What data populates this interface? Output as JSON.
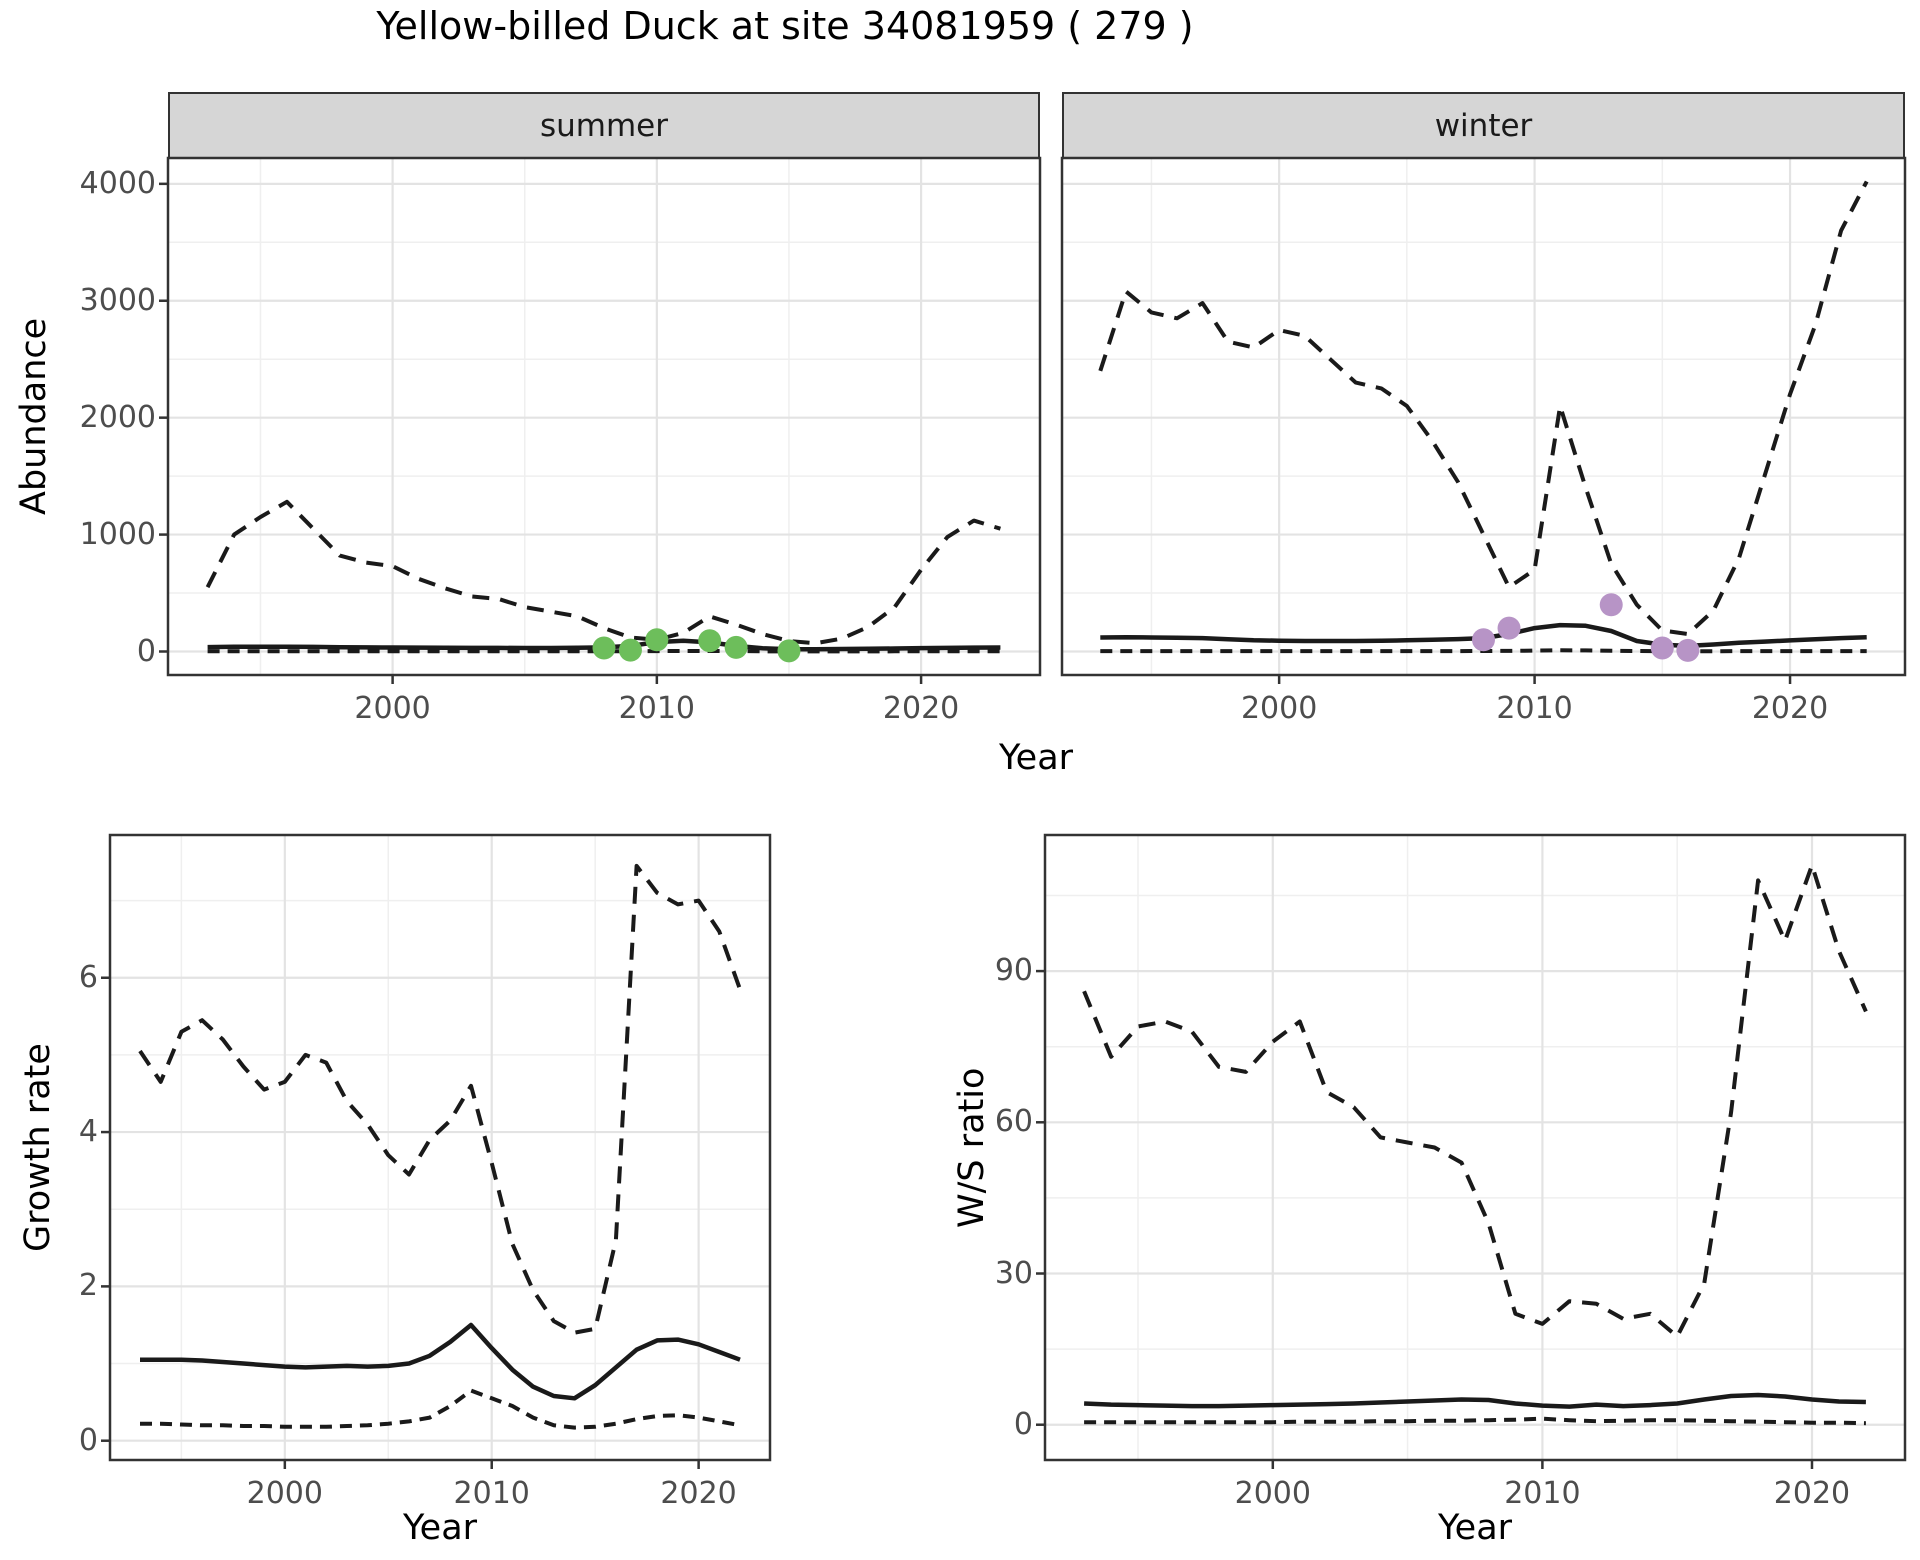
{
  "title": "Yellow-billed Duck at site 34081959 ( 279 )",
  "colors": {
    "summer_points": "#6DBE5B",
    "winter_points": "#B794C6",
    "line": "#1A1A1A",
    "strip_bg": "#D6D6D6",
    "grid_major": "#E3E3E3",
    "grid_minor": "#EFEFEF",
    "tick_text": "#4D4D4D"
  },
  "chart_data": [
    {
      "id": "abundance-summer",
      "type": "line",
      "facet_label": "summer",
      "xlabel": "Year",
      "ylabel": "Abundance",
      "xlim": [
        1991.5,
        2024.5
      ],
      "ylim": [
        -201,
        4221
      ],
      "x_ticks": [
        2000,
        2010,
        2020
      ],
      "y_ticks": [
        0,
        1000,
        2000,
        3000,
        4000
      ],
      "grid": true,
      "legend": "none",
      "x": [
        1993,
        1994,
        1995,
        1996,
        1997,
        1998,
        1999,
        2000,
        2001,
        2002,
        2003,
        2004,
        2005,
        2006,
        2007,
        2008,
        2009,
        2010,
        2011,
        2012,
        2013,
        2014,
        2015,
        2016,
        2017,
        2018,
        2019,
        2020,
        2021,
        2022,
        2023
      ],
      "series": [
        {
          "name": "upper 95% CI",
          "style": "dashed",
          "values": [
            550,
            1000,
            1150,
            1280,
            1050,
            820,
            760,
            730,
            620,
            540,
            470,
            450,
            380,
            340,
            300,
            200,
            120,
            100,
            160,
            300,
            230,
            150,
            90,
            70,
            110,
            210,
            380,
            700,
            980,
            1120,
            1050
          ]
        },
        {
          "name": "median",
          "style": "solid",
          "values": [
            38,
            40,
            41,
            41,
            39,
            37,
            35,
            34,
            33,
            32,
            31,
            31,
            30,
            30,
            32,
            35,
            48,
            80,
            92,
            78,
            48,
            28,
            20,
            19,
            21,
            23,
            26,
            29,
            31,
            33,
            34
          ]
        },
        {
          "name": "lower 95% CI",
          "style": "dashed",
          "values": [
            2,
            2,
            2,
            2,
            2,
            2,
            2,
            2,
            2,
            2,
            2,
            2,
            2,
            2,
            2,
            2,
            2,
            3,
            4,
            4,
            3,
            2,
            1,
            1,
            1,
            1,
            2,
            2,
            2,
            2,
            2
          ]
        }
      ],
      "points": {
        "name": "observed summer counts",
        "color": "#6DBE5B",
        "data": [
          [
            2008,
            30
          ],
          [
            2009,
            12
          ],
          [
            2010,
            100
          ],
          [
            2012,
            92
          ],
          [
            2013,
            35
          ],
          [
            2015,
            5
          ]
        ]
      }
    },
    {
      "id": "abundance-winter",
      "type": "line",
      "facet_label": "winter",
      "xlabel": "Year",
      "ylabel": "Abundance",
      "xlim": [
        1991.5,
        2024.5
      ],
      "ylim": [
        -201,
        4221
      ],
      "x_ticks": [
        2000,
        2010,
        2020
      ],
      "y_ticks": [
        0,
        1000,
        2000,
        3000,
        4000
      ],
      "grid": true,
      "legend": "none",
      "x": [
        1993,
        1994,
        1995,
        1996,
        1997,
        1998,
        1999,
        2000,
        2001,
        2002,
        2003,
        2004,
        2005,
        2006,
        2007,
        2008,
        2009,
        2010,
        2011,
        2012,
        2013,
        2014,
        2015,
        2016,
        2017,
        2018,
        2019,
        2020,
        2021,
        2022,
        2023
      ],
      "series": [
        {
          "name": "upper 95% CI",
          "style": "dashed",
          "values": [
            2400,
            3080,
            2900,
            2850,
            2980,
            2650,
            2600,
            2750,
            2700,
            2500,
            2300,
            2250,
            2100,
            1800,
            1450,
            1000,
            550,
            700,
            2100,
            1400,
            750,
            400,
            180,
            150,
            350,
            800,
            1500,
            2200,
            2800,
            3600,
            4020
          ]
        },
        {
          "name": "median",
          "style": "solid",
          "values": [
            120,
            122,
            120,
            118,
            115,
            105,
            96,
            92,
            90,
            90,
            90,
            92,
            96,
            100,
            106,
            115,
            150,
            200,
            226,
            220,
            175,
            90,
            58,
            48,
            60,
            75,
            85,
            95,
            105,
            115,
            122
          ]
        },
        {
          "name": "lower 95% CI",
          "style": "dashed",
          "values": [
            3,
            3,
            3,
            3,
            3,
            3,
            3,
            3,
            3,
            3,
            3,
            3,
            3,
            3,
            3,
            4,
            5,
            8,
            10,
            9,
            6,
            4,
            2,
            2,
            2,
            3,
            3,
            3,
            3,
            3,
            3
          ]
        }
      ],
      "points": {
        "name": "observed winter counts",
        "color": "#B794C6",
        "data": [
          [
            2008,
            100
          ],
          [
            2009,
            200
          ],
          [
            2013,
            400
          ],
          [
            2015,
            30
          ],
          [
            2016,
            10
          ]
        ]
      }
    },
    {
      "id": "growth-rate",
      "type": "line",
      "facet_label": "",
      "xlabel": "Year",
      "ylabel": "Growth rate",
      "xlim": [
        1991.55,
        2023.45
      ],
      "ylim": [
        -0.25,
        7.85
      ],
      "x_ticks": [
        2000,
        2010,
        2020
      ],
      "y_ticks": [
        0,
        2,
        4,
        6
      ],
      "grid": true,
      "legend": "none",
      "x": [
        1993,
        1994,
        1995,
        1996,
        1997,
        1998,
        1999,
        2000,
        2001,
        2002,
        2003,
        2004,
        2005,
        2006,
        2007,
        2008,
        2009,
        2010,
        2011,
        2012,
        2013,
        2014,
        2015,
        2016,
        2017,
        2018,
        2019,
        2020,
        2021,
        2022
      ],
      "series": [
        {
          "name": "upper 95% CI",
          "style": "dashed",
          "values": [
            5.05,
            4.65,
            5.3,
            5.45,
            5.2,
            4.85,
            4.55,
            4.65,
            5.0,
            4.9,
            4.4,
            4.1,
            3.7,
            3.45,
            3.9,
            4.15,
            4.6,
            3.6,
            2.55,
            1.95,
            1.55,
            1.4,
            1.45,
            2.6,
            7.45,
            7.1,
            6.95,
            7.0,
            6.6,
            5.85
          ]
        },
        {
          "name": "median",
          "style": "solid",
          "values": [
            1.05,
            1.05,
            1.05,
            1.04,
            1.02,
            1.0,
            0.98,
            0.96,
            0.95,
            0.96,
            0.97,
            0.96,
            0.97,
            1.0,
            1.1,
            1.28,
            1.5,
            1.2,
            0.92,
            0.7,
            0.58,
            0.55,
            0.72,
            0.95,
            1.18,
            1.3,
            1.31,
            1.25,
            1.15,
            1.05
          ]
        },
        {
          "name": "lower 95% CI",
          "style": "dashed",
          "values": [
            0.22,
            0.22,
            0.21,
            0.2,
            0.2,
            0.19,
            0.19,
            0.18,
            0.18,
            0.18,
            0.19,
            0.2,
            0.22,
            0.25,
            0.3,
            0.45,
            0.65,
            0.55,
            0.45,
            0.3,
            0.2,
            0.17,
            0.18,
            0.22,
            0.28,
            0.32,
            0.33,
            0.3,
            0.25,
            0.2
          ]
        }
      ],
      "points": null
    },
    {
      "id": "ws-ratio",
      "type": "line",
      "facet_label": "",
      "xlabel": "Year",
      "ylabel": "W/S ratio",
      "xlim": [
        1991.55,
        2023.45
      ],
      "ylim": [
        -7,
        117
      ],
      "x_ticks": [
        2000,
        2010,
        2020
      ],
      "y_ticks": [
        0,
        30,
        60,
        90
      ],
      "grid": true,
      "legend": "none",
      "x": [
        1993,
        1994,
        1995,
        1996,
        1997,
        1998,
        1999,
        2000,
        2001,
        2002,
        2003,
        2004,
        2005,
        2006,
        2007,
        2008,
        2009,
        2010,
        2011,
        2012,
        2013,
        2014,
        2015,
        2016,
        2017,
        2018,
        2019,
        2020,
        2021,
        2022
      ],
      "series": [
        {
          "name": "upper 95% CI",
          "style": "dashed",
          "values": [
            86,
            73,
            79,
            80,
            78,
            71,
            70,
            76,
            80,
            66,
            63,
            57,
            56,
            55,
            52,
            40,
            22,
            20,
            24.5,
            24,
            21,
            22,
            17.5,
            28,
            62,
            108,
            96,
            111,
            94,
            82
          ]
        },
        {
          "name": "median",
          "style": "solid",
          "values": [
            4.2,
            4.0,
            3.9,
            3.8,
            3.7,
            3.7,
            3.8,
            3.9,
            4.0,
            4.1,
            4.2,
            4.4,
            4.6,
            4.8,
            5.0,
            4.9,
            4.2,
            3.8,
            3.6,
            4.0,
            3.7,
            3.9,
            4.2,
            5.0,
            5.7,
            5.9,
            5.6,
            5.0,
            4.6,
            4.5
          ]
        },
        {
          "name": "lower 95% CI",
          "style": "dashed",
          "values": [
            0.5,
            0.5,
            0.5,
            0.5,
            0.5,
            0.5,
            0.5,
            0.5,
            0.6,
            0.6,
            0.6,
            0.7,
            0.7,
            0.8,
            0.8,
            0.9,
            1.0,
            1.2,
            0.9,
            0.7,
            0.8,
            0.9,
            0.9,
            0.8,
            0.7,
            0.6,
            0.5,
            0.4,
            0.4,
            0.3
          ]
        }
      ],
      "points": null
    }
  ]
}
